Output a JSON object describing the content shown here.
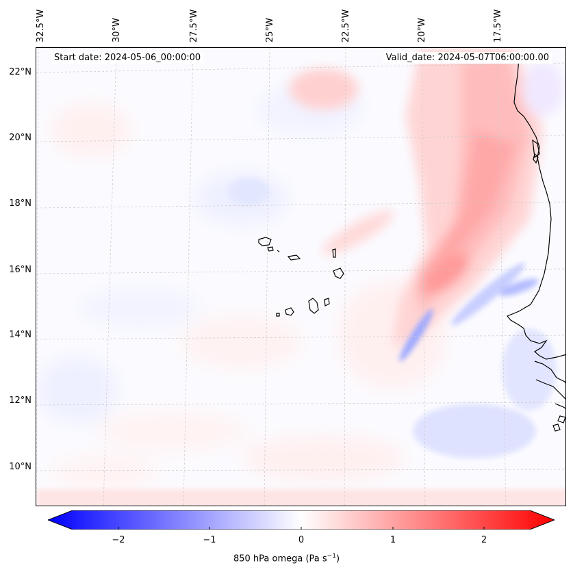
{
  "map": {
    "start_date": "Start date: 2024-05-06_00:00:00",
    "valid_date": "Valid_date: 2024-05-07T06:00:00.00",
    "longitude_labels": [
      "32.5°W",
      "30°W",
      "27.5°W",
      "25°W",
      "22.5°W",
      "20°W",
      "17.5°W"
    ],
    "latitude_labels": [
      "22°N",
      "20°N",
      "18°N",
      "16°N",
      "14°N",
      "12°N",
      "10°N"
    ],
    "field": "850 hPa omega",
    "colormap": "bwr"
  },
  "colorbar": {
    "ticks": [
      "−2",
      "−1",
      "0",
      "1",
      "2"
    ],
    "label": "850 hPa omega (Pa s",
    "label_exp": "−1",
    "label_end": ")",
    "min_color": "#0000ff",
    "mid_color": "#ffffff",
    "max_color": "#ff0000"
  }
}
